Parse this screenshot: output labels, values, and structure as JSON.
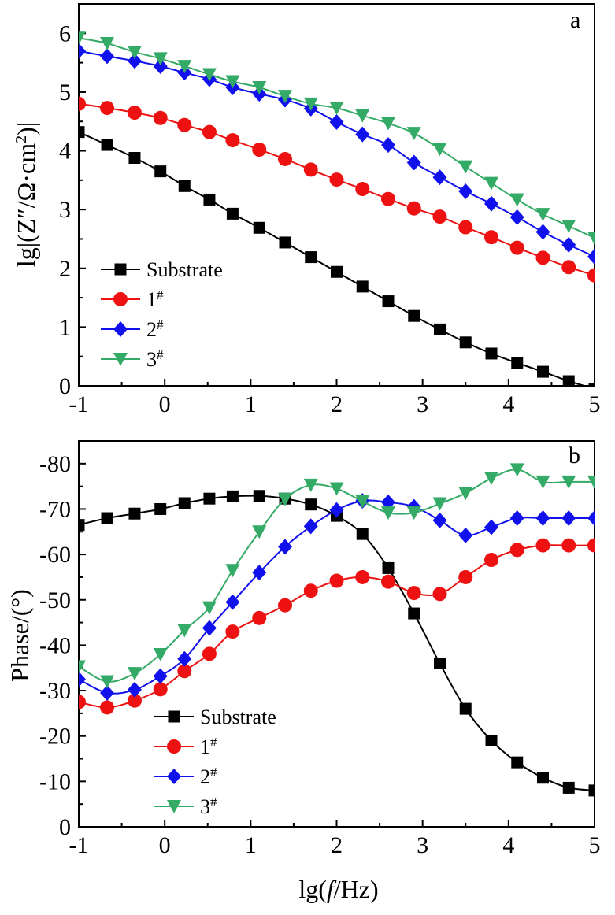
{
  "chart_data": [
    {
      "type": "line",
      "panel_label": "a",
      "ylabel_main": "lg|(Z″/Ω·cm",
      "ylabel_sup": "2",
      "ylabel_close": ")|",
      "xlim": [
        -1,
        5
      ],
      "ylim": [
        0,
        6.5
      ],
      "xticks": [
        -1,
        0,
        1,
        2,
        3,
        4,
        5
      ],
      "yticks": [
        0,
        1,
        2,
        3,
        4,
        5,
        6
      ],
      "xtick_labels": [
        "-1",
        "0",
        "1",
        "2",
        "3",
        "4",
        "5"
      ],
      "ytick_labels": [
        "0",
        "1",
        "2",
        "3",
        "4",
        "5",
        "6"
      ],
      "grid": false,
      "legend_position": "bottom-left",
      "series": [
        {
          "name": "Substrate",
          "sup": "",
          "color": "#000000",
          "marker": "square",
          "x": [
            -1,
            -0.67,
            -0.35,
            -0.05,
            0.23,
            0.52,
            0.79,
            1.1,
            1.4,
            1.7,
            2.0,
            2.3,
            2.6,
            2.9,
            3.2,
            3.5,
            3.8,
            4.1,
            4.4,
            4.7,
            5
          ],
          "y": [
            4.32,
            4.1,
            3.88,
            3.65,
            3.4,
            3.17,
            2.93,
            2.69,
            2.44,
            2.19,
            1.94,
            1.69,
            1.44,
            1.19,
            0.96,
            0.74,
            0.55,
            0.39,
            0.24,
            0.08,
            -0.05
          ]
        },
        {
          "name": "1",
          "sup": "#",
          "color": "#ee1111",
          "marker": "circle",
          "x": [
            -1,
            -0.67,
            -0.35,
            -0.05,
            0.23,
            0.52,
            0.79,
            1.1,
            1.4,
            1.7,
            2.0,
            2.3,
            2.6,
            2.9,
            3.2,
            3.5,
            3.8,
            4.1,
            4.4,
            4.7,
            5
          ],
          "y": [
            4.8,
            4.73,
            4.65,
            4.56,
            4.44,
            4.32,
            4.18,
            4.02,
            3.86,
            3.68,
            3.51,
            3.35,
            3.18,
            3.02,
            2.88,
            2.7,
            2.53,
            2.35,
            2.18,
            2.02,
            1.88
          ]
        },
        {
          "name": "2",
          "sup": "#",
          "color": "#1111ee",
          "marker": "diamond",
          "x": [
            -1,
            -0.67,
            -0.35,
            -0.05,
            0.23,
            0.52,
            0.79,
            1.1,
            1.4,
            1.7,
            2.0,
            2.3,
            2.6,
            2.9,
            3.2,
            3.5,
            3.8,
            4.1,
            4.4,
            4.7,
            5
          ],
          "y": [
            5.7,
            5.61,
            5.53,
            5.44,
            5.33,
            5.22,
            5.08,
            4.97,
            4.87,
            4.72,
            4.49,
            4.28,
            4.1,
            3.8,
            3.55,
            3.31,
            3.1,
            2.87,
            2.62,
            2.4,
            2.2
          ]
        },
        {
          "name": "3",
          "sup": "#",
          "color": "#33aa66",
          "marker": "triangle-down",
          "x": [
            -1,
            -0.67,
            -0.35,
            -0.05,
            0.23,
            0.52,
            0.79,
            1.1,
            1.4,
            1.7,
            2.0,
            2.3,
            2.6,
            2.9,
            3.2,
            3.5,
            3.8,
            4.1,
            4.4,
            4.7,
            5
          ],
          "y": [
            5.92,
            5.83,
            5.68,
            5.57,
            5.44,
            5.3,
            5.18,
            5.08,
            4.93,
            4.8,
            4.73,
            4.6,
            4.47,
            4.3,
            4.03,
            3.73,
            3.45,
            3.17,
            2.92,
            2.72,
            2.52
          ]
        }
      ]
    },
    {
      "type": "line",
      "panel_label": "b",
      "ylabel": "Phase/(°)",
      "xlabel_main": "lg(",
      "xlabel_italic": "f",
      "xlabel_rest": "/Hz)",
      "xlim": [
        -1,
        5
      ],
      "ylim": [
        0,
        -85
      ],
      "xticks": [
        -1,
        0,
        1,
        2,
        3,
        4,
        5
      ],
      "yticks": [
        0,
        -10,
        -20,
        -30,
        -40,
        -50,
        -60,
        -70,
        -80
      ],
      "xtick_labels": [
        "-1",
        "0",
        "1",
        "2",
        "3",
        "4",
        "5"
      ],
      "ytick_labels": [
        "0",
        "-10",
        "-20",
        "-30",
        "-40",
        "-50",
        "-60",
        "-70",
        "-80"
      ],
      "grid": false,
      "legend_position": "bottom-left",
      "series": [
        {
          "name": "Substrate",
          "sup": "",
          "color": "#000000",
          "marker": "square",
          "x": [
            -1,
            -0.67,
            -0.35,
            -0.05,
            0.23,
            0.52,
            0.79,
            1.1,
            1.4,
            1.7,
            2.0,
            2.3,
            2.6,
            2.9,
            3.2,
            3.5,
            3.8,
            4.1,
            4.4,
            4.7,
            5
          ],
          "y": [
            -66.5,
            -68.0,
            -69.0,
            -70.0,
            -71.3,
            -72.3,
            -72.8,
            -72.9,
            -72.3,
            -71.0,
            -68.5,
            -64.5,
            -57.0,
            -47.0,
            -36.0,
            -26.0,
            -19.0,
            -14.2,
            -10.8,
            -8.6,
            -8.0
          ]
        },
        {
          "name": "1",
          "sup": "#",
          "color": "#ee1111",
          "marker": "circle",
          "x": [
            -1,
            -0.67,
            -0.35,
            -0.05,
            0.23,
            0.52,
            0.79,
            1.1,
            1.4,
            1.7,
            2.0,
            2.3,
            2.6,
            2.9,
            3.2,
            3.5,
            3.8,
            4.1,
            4.4,
            4.7,
            5
          ],
          "y": [
            -27.5,
            -26.3,
            -27.8,
            -30.3,
            -34.3,
            -38.1,
            -43.0,
            -46.0,
            -48.8,
            -52.0,
            -54.2,
            -55.0,
            -54.0,
            -51.5,
            -51.3,
            -55.0,
            -58.8,
            -61.0,
            -62.0,
            -62.0,
            -62.0
          ]
        },
        {
          "name": "2",
          "sup": "#",
          "color": "#1111ee",
          "marker": "diamond",
          "x": [
            -1,
            -0.67,
            -0.35,
            -0.05,
            0.23,
            0.52,
            0.79,
            1.1,
            1.4,
            1.7,
            2.0,
            2.3,
            2.6,
            2.9,
            3.2,
            3.5,
            3.8,
            4.1,
            4.4,
            4.7,
            5
          ],
          "y": [
            -32.5,
            -29.5,
            -30.2,
            -33.2,
            -37.0,
            -43.8,
            -49.5,
            -56.0,
            -61.7,
            -66.2,
            -69.8,
            -71.8,
            -71.5,
            -70.5,
            -67.5,
            -64.2,
            -66.0,
            -68.0,
            -68.0,
            -68.0,
            -68.0
          ]
        },
        {
          "name": "3",
          "sup": "#",
          "color": "#33aa66",
          "marker": "triangle-down",
          "x": [
            -1,
            -0.67,
            -0.35,
            -0.05,
            0.23,
            0.52,
            0.79,
            1.1,
            1.4,
            1.7,
            2.0,
            2.3,
            2.6,
            2.9,
            3.2,
            3.5,
            3.8,
            4.1,
            4.4,
            4.7,
            5
          ],
          "y": [
            -35.3,
            -32.0,
            -33.8,
            -38.0,
            -43.3,
            -48.3,
            -56.5,
            -65.0,
            -72.2,
            -75.3,
            -74.5,
            -71.7,
            -69.2,
            -69.2,
            -71.2,
            -73.5,
            -76.8,
            -78.7,
            -76.0,
            -76.0,
            -76.0
          ]
        }
      ]
    }
  ]
}
